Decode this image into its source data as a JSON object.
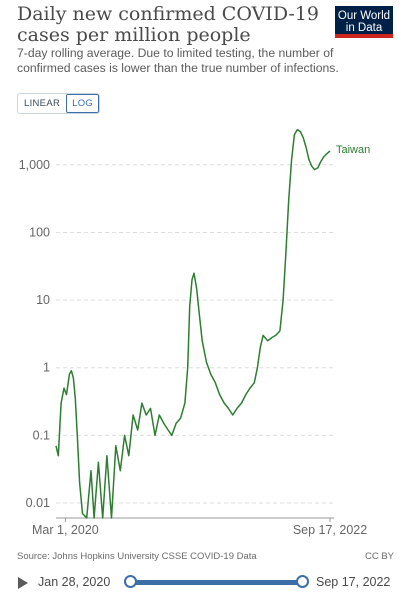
{
  "header": {
    "title": "Daily new confirmed COVID-19 cases per million people",
    "subtitle": "7-day rolling average. Due to limited testing, the number of confirmed cases is lower than the true number of infections.",
    "logo_line1": "Our World",
    "logo_line2": "in Data"
  },
  "controls": {
    "linear_label": "LINEAR",
    "log_label": "LOG",
    "selected": "LOG"
  },
  "footer": {
    "source": "Source: Johns Hopkins University CSSE COVID-19 Data",
    "license": "CC BY"
  },
  "timeline": {
    "start_label": "Jan 28, 2020",
    "end_label": "Sep 17, 2022",
    "range_start": 0,
    "range_end": 1
  },
  "colors": {
    "series": "#2e7d32",
    "grid": "#dddddd",
    "accent": "#3c6ea8"
  },
  "chart_data": {
    "type": "line",
    "y_scale": "log",
    "y_ticks": [
      {
        "value": 0.01,
        "label": "0.01"
      },
      {
        "value": 0.1,
        "label": "0.1"
      },
      {
        "value": 1,
        "label": "1"
      },
      {
        "value": 10,
        "label": "10"
      },
      {
        "value": 100,
        "label": "100"
      },
      {
        "value": 1000,
        "label": "1,000"
      }
    ],
    "x_ticks": [
      {
        "date": "2020-03-01",
        "label": "Mar 1, 2020"
      },
      {
        "date": "2022-09-17",
        "label": "Sep 17, 2022"
      }
    ],
    "xlim": [
      "2020-01-28",
      "2022-09-17"
    ],
    "ylim": [
      0.006,
      3500
    ],
    "grid": "horizontal-dashed",
    "series": [
      {
        "name": "Taiwan",
        "points": [
          [
            "2020-01-28",
            0.07
          ],
          [
            "2020-02-05",
            0.05
          ],
          [
            "2020-02-15",
            0.3
          ],
          [
            "2020-02-25",
            0.5
          ],
          [
            "2020-03-05",
            0.4
          ],
          [
            "2020-03-15",
            0.8
          ],
          [
            "2020-03-22",
            0.9
          ],
          [
            "2020-03-29",
            0.7
          ],
          [
            "2020-04-05",
            0.35
          ],
          [
            "2020-04-12",
            0.1
          ],
          [
            "2020-04-20",
            0.02
          ],
          [
            "2020-04-30",
            0.007
          ],
          [
            "2020-05-15",
            0.006
          ],
          [
            "2020-05-30",
            0.03
          ],
          [
            "2020-06-10",
            0.006
          ],
          [
            "2020-06-25",
            0.04
          ],
          [
            "2020-07-10",
            0.006
          ],
          [
            "2020-07-25",
            0.05
          ],
          [
            "2020-08-10",
            0.006
          ],
          [
            "2020-08-25",
            0.07
          ],
          [
            "2020-09-10",
            0.03
          ],
          [
            "2020-09-25",
            0.1
          ],
          [
            "2020-10-10",
            0.05
          ],
          [
            "2020-10-25",
            0.2
          ],
          [
            "2020-11-10",
            0.12
          ],
          [
            "2020-11-25",
            0.3
          ],
          [
            "2020-12-10",
            0.2
          ],
          [
            "2020-12-25",
            0.25
          ],
          [
            "2021-01-10",
            0.1
          ],
          [
            "2021-01-25",
            0.2
          ],
          [
            "2021-02-10",
            0.15
          ],
          [
            "2021-02-25",
            0.12
          ],
          [
            "2021-03-10",
            0.1
          ],
          [
            "2021-03-25",
            0.15
          ],
          [
            "2021-04-10",
            0.18
          ],
          [
            "2021-04-25",
            0.3
          ],
          [
            "2021-05-05",
            1
          ],
          [
            "2021-05-12",
            8
          ],
          [
            "2021-05-20",
            20
          ],
          [
            "2021-05-27",
            25
          ],
          [
            "2021-06-05",
            15
          ],
          [
            "2021-06-15",
            6
          ],
          [
            "2021-06-25",
            2.5
          ],
          [
            "2021-07-10",
            1.2
          ],
          [
            "2021-07-25",
            0.8
          ],
          [
            "2021-08-10",
            0.6
          ],
          [
            "2021-08-25",
            0.4
          ],
          [
            "2021-09-10",
            0.3
          ],
          [
            "2021-09-25",
            0.25
          ],
          [
            "2021-10-10",
            0.2
          ],
          [
            "2021-10-25",
            0.25
          ],
          [
            "2021-11-10",
            0.3
          ],
          [
            "2021-11-25",
            0.4
          ],
          [
            "2021-12-10",
            0.5
          ],
          [
            "2021-12-25",
            0.6
          ],
          [
            "2022-01-05",
            1
          ],
          [
            "2022-01-15",
            2
          ],
          [
            "2022-01-25",
            3
          ],
          [
            "2022-02-10",
            2.5
          ],
          [
            "2022-02-25",
            2.8
          ],
          [
            "2022-03-10",
            3
          ],
          [
            "2022-03-25",
            3.5
          ],
          [
            "2022-04-05",
            10
          ],
          [
            "2022-04-15",
            50
          ],
          [
            "2022-04-25",
            300
          ],
          [
            "2022-05-05",
            1200
          ],
          [
            "2022-05-15",
            2800
          ],
          [
            "2022-05-25",
            3300
          ],
          [
            "2022-06-05",
            3100
          ],
          [
            "2022-06-15",
            2500
          ],
          [
            "2022-06-25",
            1800
          ],
          [
            "2022-07-05",
            1200
          ],
          [
            "2022-07-15",
            950
          ],
          [
            "2022-07-25",
            850
          ],
          [
            "2022-08-05",
            900
          ],
          [
            "2022-08-15",
            1100
          ],
          [
            "2022-08-25",
            1300
          ],
          [
            "2022-09-05",
            1450
          ],
          [
            "2022-09-17",
            1600
          ]
        ]
      }
    ]
  }
}
